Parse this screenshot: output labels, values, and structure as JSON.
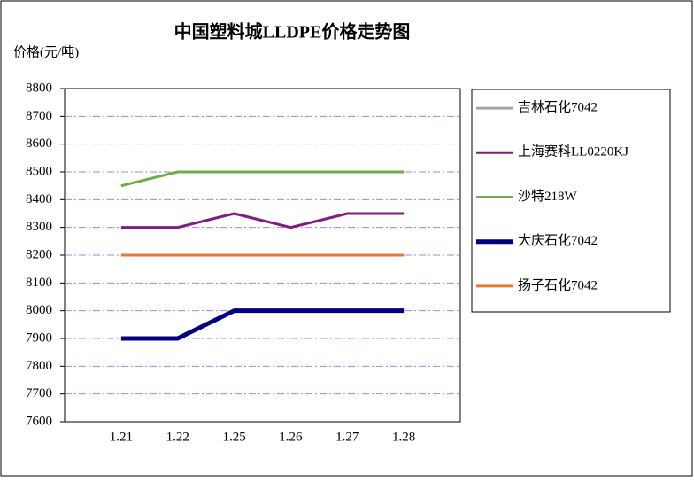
{
  "chart_data": {
    "type": "line",
    "title": "中国塑料城LLDPE价格走势图",
    "y_label": "价格(元/吨)",
    "categories": [
      "1.21",
      "1.22",
      "1.25",
      "1.26",
      "1.27",
      "1.28"
    ],
    "series": [
      {
        "name": "吉林石化7042",
        "color": "#a5a5a5",
        "line_width": 3,
        "values": [
          8200,
          8200,
          8200,
          8200,
          8200,
          8200
        ]
      },
      {
        "name": "上海赛科LL0220KJ",
        "color": "#7f1e7f",
        "line_width": 3,
        "values": [
          8300,
          8300,
          8350,
          8300,
          8350,
          8350
        ]
      },
      {
        "name": "沙特218W",
        "color": "#70ad47",
        "line_width": 3,
        "values": [
          8450,
          8500,
          8500,
          8500,
          8500,
          8500
        ]
      },
      {
        "name": "大庆石化7042",
        "color": "#00007f",
        "line_width": 5,
        "values": [
          7900,
          7900,
          8000,
          8000,
          8000,
          8000
        ]
      },
      {
        "name": "扬子石化7042",
        "color": "#e07b39",
        "line_width": 3,
        "values": [
          8200,
          8200,
          8200,
          8200,
          8200,
          8200
        ]
      }
    ],
    "ylim": [
      7600,
      8800
    ],
    "yticks": [
      7600,
      7700,
      7800,
      7900,
      8000,
      8100,
      8200,
      8300,
      8400,
      8500,
      8600,
      8700,
      8800
    ],
    "grid": true,
    "grid_color": "#b57edc",
    "legend": "right"
  }
}
